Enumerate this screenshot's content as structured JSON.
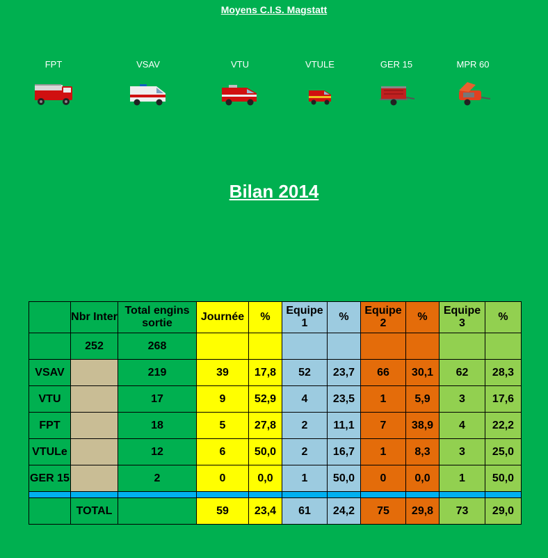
{
  "page_title": "Moyens C.I.S. Magstatt",
  "vehicles": [
    {
      "label": "FPT",
      "icon": "fire-truck-icon"
    },
    {
      "label": "VSAV",
      "icon": "ambulance-van-icon"
    },
    {
      "label": "VTU",
      "icon": "utility-truck-icon"
    },
    {
      "label": "VTULE",
      "icon": "small-utility-vehicle-icon"
    },
    {
      "label": "GER 15",
      "icon": "generator-trailer-icon"
    },
    {
      "label": "MPR 60",
      "icon": "pump-trailer-icon"
    }
  ],
  "bilan_title": "Bilan 2014",
  "table": {
    "headers": {
      "nbr_inter": "Nbr Inter",
      "total_engins": "Total engins sortie",
      "journee": "Journée",
      "pct": "%",
      "equipe1": "Equipe 1",
      "equipe2": "Equipe 2",
      "equipe3": "Equipe 3"
    },
    "summary": {
      "nbr_inter": "252",
      "total_engins": "268"
    },
    "rows": [
      {
        "name": "VSAV",
        "total": "219",
        "journee": "39",
        "journee_pct": "17,8",
        "e1": "52",
        "e1_pct": "23,7",
        "e2": "66",
        "e2_pct": "30,1",
        "e3": "62",
        "e3_pct": "28,3"
      },
      {
        "name": "VTU",
        "total": "17",
        "journee": "9",
        "journee_pct": "52,9",
        "e1": "4",
        "e1_pct": "23,5",
        "e2": "1",
        "e2_pct": "5,9",
        "e3": "3",
        "e3_pct": "17,6"
      },
      {
        "name": "FPT",
        "total": "18",
        "journee": "5",
        "journee_pct": "27,8",
        "e1": "2",
        "e1_pct": "11,1",
        "e2": "7",
        "e2_pct": "38,9",
        "e3": "4",
        "e3_pct": "22,2"
      },
      {
        "name": "VTULe",
        "total": "12",
        "journee": "6",
        "journee_pct": "50,0",
        "e1": "2",
        "e1_pct": "16,7",
        "e2": "1",
        "e2_pct": "8,3",
        "e3": "3",
        "e3_pct": "25,0"
      },
      {
        "name": "GER 15",
        "total": "2",
        "journee": "0",
        "journee_pct": "0,0",
        "e1": "1",
        "e1_pct": "50,0",
        "e2": "0",
        "e2_pct": "0,0",
        "e3": "1",
        "e3_pct": "50,0"
      }
    ],
    "total": {
      "label": "TOTAL",
      "journee": "59",
      "journee_pct": "23,4",
      "e1": "61",
      "e1_pct": "24,2",
      "e2": "75",
      "e2_pct": "29,8",
      "e3": "73",
      "e3_pct": "29,0"
    }
  },
  "colors": {
    "background": "#00b050",
    "journee": "#ffff00",
    "equipe1": "#9ccbe0",
    "equipe2": "#e46c0a",
    "equipe3": "#92d050",
    "nbr_inter_cells": "#c9bd95",
    "separator": "#00b0f0"
  }
}
